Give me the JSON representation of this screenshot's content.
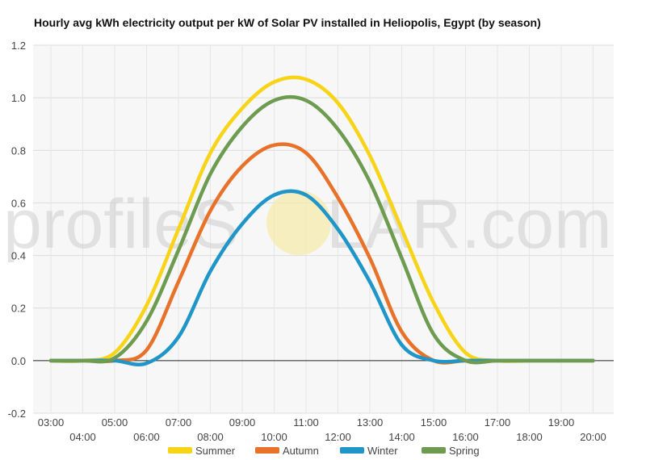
{
  "chart_data": {
    "type": "line",
    "title": "Hourly avg kWh electricity output per kW of Solar PV installed in Heliopolis, Egypt (by season)",
    "xlabel": "",
    "ylabel": "",
    "ylim": [
      -0.2,
      1.2
    ],
    "yticks": [
      "-0.2",
      "0.0",
      "0.2",
      "0.4",
      "0.6",
      "0.8",
      "1.0",
      "1.2"
    ],
    "categories": [
      "03:00",
      "04:00",
      "05:00",
      "06:00",
      "07:00",
      "08:00",
      "09:00",
      "10:00",
      "11:00",
      "12:00",
      "13:00",
      "14:00",
      "15:00",
      "16:00",
      "17:00",
      "18:00",
      "19:00",
      "20:00"
    ],
    "series": [
      {
        "name": "Summer",
        "color": "#f7d417",
        "values": [
          0.0,
          0.0,
          0.03,
          0.21,
          0.5,
          0.79,
          0.96,
          1.06,
          1.07,
          0.98,
          0.78,
          0.5,
          0.22,
          0.03,
          0.0,
          0.0,
          0.0,
          0.0
        ]
      },
      {
        "name": "Autumn",
        "color": "#e8722a",
        "values": [
          0.0,
          0.0,
          0.0,
          0.04,
          0.3,
          0.57,
          0.74,
          0.82,
          0.79,
          0.62,
          0.39,
          0.11,
          0.0,
          0.0,
          0.0,
          0.0,
          0.0,
          0.0
        ]
      },
      {
        "name": "Winter",
        "color": "#1f95c8",
        "values": [
          0.0,
          0.0,
          0.0,
          -0.01,
          0.09,
          0.34,
          0.52,
          0.63,
          0.63,
          0.5,
          0.3,
          0.06,
          0.0,
          0.0,
          0.0,
          0.0,
          0.0,
          0.0
        ]
      },
      {
        "name": "Spring",
        "color": "#6d9b4f",
        "values": [
          0.0,
          0.0,
          0.01,
          0.15,
          0.42,
          0.71,
          0.89,
          0.99,
          0.99,
          0.88,
          0.68,
          0.39,
          0.1,
          0.0,
          0.0,
          0.0,
          0.0,
          0.0
        ]
      }
    ],
    "grid": true,
    "legend_position": "bottom"
  },
  "watermark": {
    "text_left": "profileS",
    "text_right": "LAR.com"
  }
}
